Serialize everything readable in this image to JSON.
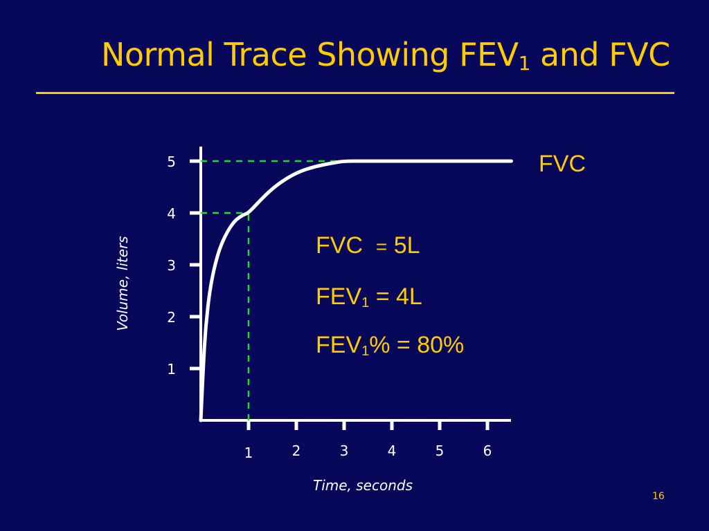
{
  "title": {
    "text": "Normal Trace Showing FEV",
    "subscript": "1",
    "suffix": " and FVC"
  },
  "page_number": "16",
  "annotations": {
    "fvc_curve_label": "FVC",
    "fvc_eq": {
      "name": "FVC",
      "eq": "=",
      "value": "5L"
    },
    "fev1_eq": {
      "name": "FEV",
      "sub": "1",
      "rest": " = 4L"
    },
    "fev1pct_eq": {
      "name": "FEV",
      "sub": "1",
      "rest": "% = 80%"
    }
  },
  "colors": {
    "background": "#08085a",
    "text_accent": "#ffcc00",
    "axis": "#ffffff",
    "guide": "#22dd22"
  },
  "chart_data": {
    "type": "line",
    "title": "Normal Trace Showing FEV1 and FVC",
    "xlabel": "Time, seconds",
    "ylabel": "Volume, liters",
    "xlim": [
      0,
      6.5
    ],
    "ylim": [
      0,
      5.3
    ],
    "x_ticks": [
      "1",
      "2",
      "3",
      "4",
      "5",
      "6"
    ],
    "y_ticks": [
      "1",
      "2",
      "3",
      "4",
      "5"
    ],
    "grid": false,
    "series": [
      {
        "name": "FVC",
        "x": [
          0,
          0.05,
          0.1,
          0.2,
          0.35,
          0.5,
          0.7,
          0.9,
          1.0,
          1.3,
          1.6,
          2.0,
          2.4,
          2.8,
          3.0,
          3.5,
          4.0,
          5.0,
          6.0,
          6.5
        ],
        "y": [
          0,
          1.0,
          1.8,
          2.6,
          3.2,
          3.55,
          3.85,
          3.97,
          4.0,
          4.3,
          4.55,
          4.78,
          4.9,
          4.97,
          5.0,
          5.0,
          5.0,
          5.0,
          5.0,
          5.0
        ]
      }
    ],
    "reference_lines": [
      {
        "from": [
          0,
          4
        ],
        "to": [
          1,
          4
        ],
        "style": "dashed"
      },
      {
        "from": [
          1,
          0
        ],
        "to": [
          1,
          4
        ],
        "style": "dashed"
      },
      {
        "from": [
          0,
          5
        ],
        "to": [
          3,
          5
        ],
        "style": "dashed"
      }
    ],
    "values": {
      "FVC": "5L",
      "FEV1": "4L",
      "FEV1%": "80%"
    }
  }
}
